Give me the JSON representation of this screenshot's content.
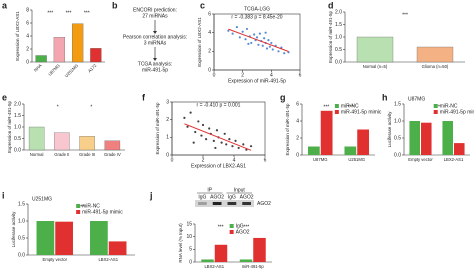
{
  "chart_data": [
    {
      "label": "a",
      "type": "bar",
      "y_label": "Expression of LBX2-AS1",
      "categories": [
        "NHA",
        "U87MG",
        "U251MG",
        "A172"
      ],
      "values": [
        1,
        3.8,
        5.9,
        2.1
      ],
      "colors": [
        "#4daf4a",
        "#f4a6b0",
        "#f39c12",
        "#e03030"
      ],
      "ylim": [
        0,
        8
      ],
      "yticks": [
        0,
        2,
        4,
        6,
        8
      ],
      "annotations": [
        "***",
        "***",
        "***"
      ]
    },
    {
      "label": "b",
      "type": "flow",
      "steps": [
        [
          "ENCORI prediction:",
          "27 miRNAs"
        ],
        [
          "Pearson correlation analysis:",
          "3 miRNAs"
        ],
        [
          "TCGA analysis:",
          "miR-491-5p"
        ]
      ]
    },
    {
      "label": "c",
      "type": "scatter",
      "title": "TCGA-LGG",
      "annotations": [
        "r = -0.383   p = 8.45e-20"
      ],
      "x_label": "Expression of miR-491-5p",
      "y_label": "Expression of LBX2-AS1",
      "color": "#2e6fcf",
      "fit_color": "#e03030",
      "x": [
        1.0,
        1.3,
        1.6,
        1.8,
        2.0,
        2.2,
        2.3,
        2.5,
        2.6,
        2.8,
        2.9,
        3.0,
        3.1,
        3.2,
        3.3,
        3.4,
        3.5,
        3.6,
        3.7,
        3.8,
        3.9,
        4.0,
        4.1,
        4.3,
        4.5,
        4.7,
        4.9,
        5.2,
        2.4,
        3.6
      ],
      "values": [
        4.2,
        3.9,
        4.6,
        3.5,
        4.1,
        3.3,
        4.4,
        3.6,
        2.9,
        3.8,
        3.2,
        3.5,
        2.7,
        3.9,
        3.1,
        2.6,
        3.4,
        2.9,
        2.3,
        3.2,
        2.5,
        2.9,
        2.2,
        2.6,
        2.0,
        2.4,
        1.8,
        1.9,
        2.8,
        4.0
      ],
      "xlim": [
        0,
        6
      ],
      "xticks": [
        0,
        2,
        4,
        6
      ],
      "ylim": [
        0,
        6
      ],
      "yticks": [
        0,
        2,
        4,
        6
      ]
    },
    {
      "label": "d",
      "type": "bar",
      "y_label": "Expression of miR-491-5p",
      "categories": [
        "Normal (n=5)",
        "Glioma (n=50)"
      ],
      "values": [
        1.0,
        0.6
      ],
      "colors": [
        "#b8e0b0",
        "#f4b183"
      ],
      "ylim": [
        0,
        2
      ],
      "yticks": [
        {
          "value": 0,
          "label": "0.0"
        },
        {
          "value": 0.5,
          "label": "0.5"
        },
        {
          "value": 1,
          "label": "1.0"
        },
        {
          "value": 1.5,
          "label": "1.5"
        },
        {
          "value": 2,
          "label": "2.0"
        }
      ],
      "annotations": [
        "***"
      ]
    },
    {
      "label": "e",
      "type": "bar",
      "y_label": "Expression of miR-491-5p",
      "categories": [
        "Normal",
        "Grade II",
        "Grade III",
        "Grade IV"
      ],
      "values": [
        1.0,
        0.75,
        0.6,
        0.4
      ],
      "colors": [
        "#b8e0b0",
        "#f7c6cf",
        "#f8cf8a",
        "#f08080"
      ],
      "ylim": [
        0,
        2
      ],
      "yticks": [
        {
          "value": 0,
          "label": "0.0"
        },
        {
          "value": 0.5,
          "label": "0.5"
        },
        {
          "value": 1,
          "label": "1.0"
        },
        {
          "value": 1.5,
          "label": "1.5"
        },
        {
          "value": 2,
          "label": "2.0"
        }
      ],
      "annotations": [
        "*",
        "*"
      ]
    },
    {
      "label": "f",
      "type": "scatter",
      "annotations": [
        "r = -0.410   p = 0.001"
      ],
      "x_label": "Expression of LBX2-AS1",
      "y_label": "Expression of miR-491-5p",
      "color": "#111",
      "fit_color": "#e03030",
      "x": [
        0.8,
        1.0,
        1.2,
        1.5,
        1.7,
        1.9,
        2.0,
        2.2,
        2.4,
        2.5,
        2.7,
        2.9,
        3.0,
        3.2,
        3.4,
        3.5,
        3.7,
        3.9,
        4.1,
        4.3,
        4.6,
        4.8,
        5.1,
        1.4,
        2.8
      ],
      "values": [
        2.1,
        1.6,
        2.4,
        1.3,
        1.9,
        1.1,
        1.7,
        0.9,
        1.5,
        1.2,
        0.8,
        1.4,
        1.0,
        0.7,
        1.2,
        0.6,
        0.9,
        0.5,
        0.8,
        0.4,
        0.6,
        0.3,
        0.5,
        0.7,
        0.4
      ],
      "xlim": [
        0,
        6
      ],
      "xticks": [
        0,
        2,
        4,
        6
      ],
      "ylim": [
        0,
        3
      ],
      "yticks": [
        0,
        1,
        2,
        3
      ]
    },
    {
      "label": "g",
      "type": "grouped_bar",
      "y_label": "Expression of miR-491-5p",
      "categories": [
        "U87MG",
        "U251MG"
      ],
      "series": [
        {
          "name": "miR-NC",
          "color": "#4daf4a",
          "values": [
            1,
            1
          ]
        },
        {
          "name": "miR-491-5p mimic",
          "color": "#e03030",
          "values": [
            5.2,
            3.0
          ]
        }
      ],
      "ylim": [
        0,
        6
      ],
      "yticks": [
        0,
        2,
        4,
        6
      ],
      "annotations": [
        "***",
        "***"
      ]
    },
    {
      "label": "h",
      "type": "grouped_bar",
      "title": "U87MG",
      "y_label": "Luciferase activity",
      "categories": [
        "Empty vector",
        "LBX2-AS1"
      ],
      "series": [
        {
          "name": "miR-NC",
          "color": "#4daf4a",
          "values": [
            1,
            1
          ]
        },
        {
          "name": "miR-491-5p mimic",
          "color": "#e03030",
          "values": [
            0.95,
            0.35
          ]
        }
      ],
      "ylim": [
        0,
        1.5
      ],
      "yticks": [
        {
          "value": 0,
          "label": "0.0"
        },
        {
          "value": 0.5,
          "label": "0.5"
        },
        {
          "value": 1,
          "label": "1.0"
        },
        {
          "value": 1.5,
          "label": "1.5"
        }
      ],
      "annotations": [
        "***"
      ]
    },
    {
      "label": "i",
      "type": "grouped_bar",
      "title": "U251MG",
      "y_label": "Luciferase activity",
      "categories": [
        "Empty vector",
        "LBX2-AS1"
      ],
      "series": [
        {
          "name": "miR-NC",
          "color": "#4daf4a",
          "values": [
            1,
            1
          ]
        },
        {
          "name": "miR-491-5p mimic",
          "color": "#e03030",
          "values": [
            0.98,
            0.4
          ]
        }
      ],
      "ylim": [
        0,
        1.5
      ],
      "yticks": [
        {
          "value": 0,
          "label": "0.0"
        },
        {
          "value": 0.5,
          "label": "0.5"
        },
        {
          "value": 1,
          "label": "1.0"
        },
        {
          "value": 1.5,
          "label": "1.5"
        }
      ],
      "annotations": [
        "***"
      ]
    },
    {
      "label": "j",
      "type": "grouped_bar",
      "blot": {
        "groups": [
          "IP",
          "Input"
        ],
        "lanes": [
          "IgG",
          "AGO2",
          "IgG",
          "AGO2"
        ],
        "protein": "AGO2"
      },
      "y_label": "RNA level (% Input)",
      "categories": [
        "LBX2-AS1",
        "miR-491-5p"
      ],
      "series": [
        {
          "name": "IgG",
          "color": "#4daf4a",
          "values": [
            1,
            1
          ]
        },
        {
          "name": "AGO2",
          "color": "#e03030",
          "values": [
            6.8,
            9.5
          ]
        }
      ],
      "ylim": [
        0,
        15
      ],
      "yticks": [
        0,
        5,
        10,
        15
      ],
      "annotations": [
        "***",
        "***"
      ]
    }
  ]
}
